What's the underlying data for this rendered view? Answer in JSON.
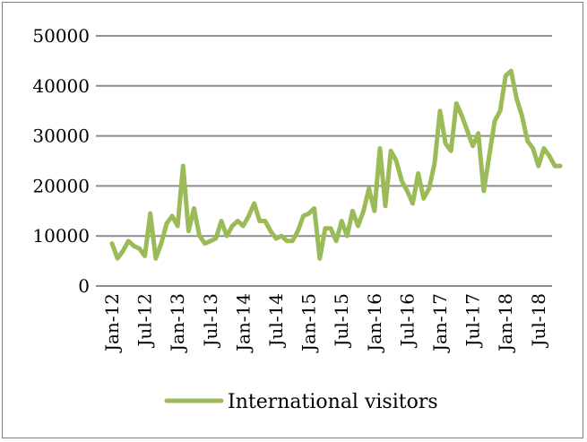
{
  "chart_data": {
    "type": "line",
    "title": "",
    "xlabel": "",
    "ylabel": "",
    "ylim": [
      0,
      50000
    ],
    "yticks": [
      0,
      10000,
      20000,
      30000,
      40000,
      50000
    ],
    "grid": true,
    "legend_position": "bottom",
    "x_tick_labels": [
      "Jan-12",
      "Jul-12",
      "Jan-13",
      "Jul-13",
      "Jan-14",
      "Jul-14",
      "Jan-15",
      "Jul-15",
      "Jan-16",
      "Jul-16",
      "Jan-17",
      "Jul-17",
      "Jan-18",
      "Jul-18"
    ],
    "series": [
      {
        "name": "International visitors",
        "color": "#9bbb59",
        "x": [
          "2012-01",
          "2012-02",
          "2012-03",
          "2012-04",
          "2012-05",
          "2012-06",
          "2012-07",
          "2012-08",
          "2012-09",
          "2012-10",
          "2012-11",
          "2012-12",
          "2013-01",
          "2013-02",
          "2013-03",
          "2013-04",
          "2013-05",
          "2013-06",
          "2013-07",
          "2013-08",
          "2013-09",
          "2013-10",
          "2013-11",
          "2013-12",
          "2014-01",
          "2014-02",
          "2014-03",
          "2014-04",
          "2014-05",
          "2014-06",
          "2014-07",
          "2014-08",
          "2014-09",
          "2014-10",
          "2014-11",
          "2014-12",
          "2015-01",
          "2015-02",
          "2015-03",
          "2015-04",
          "2015-05",
          "2015-06",
          "2015-07",
          "2015-08",
          "2015-09",
          "2015-10",
          "2015-11",
          "2015-12",
          "2016-01",
          "2016-02",
          "2016-03",
          "2016-04",
          "2016-05",
          "2016-06",
          "2016-07",
          "2016-08",
          "2016-09",
          "2016-10",
          "2016-11",
          "2016-12",
          "2017-01",
          "2017-02",
          "2017-03",
          "2017-04",
          "2017-05",
          "2017-06",
          "2017-07",
          "2017-08",
          "2017-09",
          "2017-10",
          "2017-11",
          "2017-12",
          "2018-01",
          "2018-02",
          "2018-03",
          "2018-04",
          "2018-05",
          "2018-06",
          "2018-07",
          "2018-08",
          "2018-09",
          "2018-10",
          "2018-11"
        ],
        "values": [
          8500,
          5500,
          7000,
          9000,
          8000,
          7500,
          6000,
          14500,
          5500,
          8500,
          12500,
          14000,
          12000,
          24000,
          11000,
          15500,
          10000,
          8500,
          9000,
          9500,
          13000,
          10000,
          12000,
          13000,
          12000,
          14000,
          16500,
          13000,
          13000,
          11000,
          9500,
          10000,
          9000,
          9000,
          11000,
          14000,
          14500,
          15500,
          5500,
          11500,
          11500,
          9000,
          13000,
          10000,
          15000,
          12000,
          15000,
          19500,
          15000,
          27500,
          16000,
          27000,
          25000,
          21000,
          19000,
          16500,
          22500,
          17500,
          19500,
          24500,
          35000,
          28500,
          27000,
          36500,
          34000,
          31000,
          28000,
          30500,
          19000,
          26000,
          33000,
          35000,
          42000,
          43000,
          37500,
          34000,
          29000,
          27500,
          24000,
          27500,
          26000,
          24000,
          24000
        ]
      }
    ]
  }
}
